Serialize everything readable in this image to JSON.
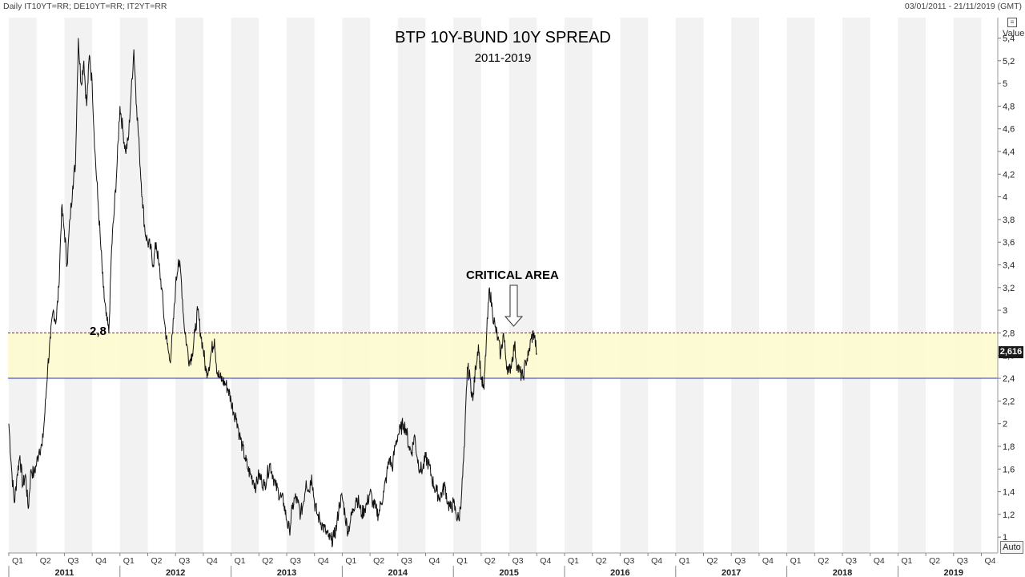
{
  "header": {
    "instruments": "Daily IT10YT=RR; DE10YT=RR; IT2YT=RR",
    "date_range": "03/01/2011 - 21/11/2019 (GMT)"
  },
  "value_header": "Value",
  "auto_label": "Auto",
  "annotations": {
    "critical_area": "CRITICAL AREA",
    "level_label": "2,8",
    "current_value": "2,616"
  },
  "colors": {
    "line": "#111111",
    "band_fill": "#fdfbcf",
    "upper_line": "#cc2222",
    "lower_line": "#2233cc",
    "stripe": "#f2f2f2",
    "badge": "#1a1a1a"
  },
  "chart_data": {
    "type": "line",
    "title": "BTP 10Y-BUND 10Y SPREAD",
    "subtitle": "2011-2019",
    "ylim": [
      0.86,
      5.58
    ],
    "y_ticks": [
      "1",
      "1,2",
      "1,4",
      "1,6",
      "1,8",
      "2",
      "2,2",
      "2,4",
      "2,6",
      "2,8",
      "3",
      "3,2",
      "3,4",
      "3,6",
      "3,8",
      "4",
      "4,2",
      "4,4",
      "4,6",
      "4,8",
      "5",
      "5,2",
      "5,4"
    ],
    "x_quarters": [
      "Q1",
      "Q2",
      "Q3",
      "Q4",
      "Q1",
      "Q2",
      "Q3",
      "Q4",
      "Q1",
      "Q2",
      "Q3",
      "Q4",
      "Q1",
      "Q2",
      "Q3",
      "Q4",
      "Q1",
      "Q2",
      "Q3",
      "Q4",
      "Q1",
      "Q2",
      "Q3",
      "Q4",
      "Q1",
      "Q2",
      "Q3",
      "Q4",
      "Q1",
      "Q2",
      "Q3",
      "Q4",
      "Q1",
      "Q2",
      "Q3",
      "Q4",
      "Q1",
      "Q2",
      "Q3",
      "Q4"
    ],
    "x_years": [
      "2011",
      "2012",
      "2013",
      "2014",
      "2015",
      "2016",
      "2017",
      "2018",
      "2019"
    ],
    "critical_band": {
      "low": 2.4,
      "high": 2.8
    },
    "last_value": 2.616,
    "series": [
      {
        "values": [
          [
            0.0,
            2.0
          ],
          [
            0.1,
            1.6
          ],
          [
            0.2,
            1.3
          ],
          [
            0.3,
            1.55
          ],
          [
            0.4,
            1.72
          ],
          [
            0.5,
            1.45
          ],
          [
            0.6,
            1.55
          ],
          [
            0.7,
            1.25
          ],
          [
            0.8,
            1.6
          ],
          [
            0.9,
            1.55
          ],
          [
            1.0,
            1.65
          ],
          [
            1.1,
            1.78
          ],
          [
            1.2,
            1.8
          ],
          [
            1.3,
            2.1
          ],
          [
            1.4,
            2.5
          ],
          [
            1.5,
            2.75
          ],
          [
            1.6,
            3.0
          ],
          [
            1.7,
            2.9
          ],
          [
            1.8,
            3.2
          ],
          [
            1.9,
            3.9
          ],
          [
            2.0,
            3.7
          ],
          [
            2.1,
            3.4
          ],
          [
            2.2,
            3.8
          ],
          [
            2.3,
            4.1
          ],
          [
            2.4,
            4.3
          ],
          [
            2.5,
            5.4
          ],
          [
            2.6,
            5.0
          ],
          [
            2.7,
            5.2
          ],
          [
            2.8,
            4.8
          ],
          [
            2.9,
            5.25
          ],
          [
            3.0,
            5.0
          ],
          [
            3.1,
            4.4
          ],
          [
            3.2,
            4.0
          ],
          [
            3.3,
            3.6
          ],
          [
            3.4,
            3.2
          ],
          [
            3.5,
            2.95
          ],
          [
            3.6,
            2.8
          ],
          [
            3.7,
            3.55
          ],
          [
            3.8,
            3.9
          ],
          [
            3.9,
            4.3
          ],
          [
            4.0,
            4.8
          ],
          [
            4.1,
            4.6
          ],
          [
            4.2,
            4.4
          ],
          [
            4.3,
            4.5
          ],
          [
            4.4,
            4.9
          ],
          [
            4.5,
            5.3
          ],
          [
            4.6,
            4.8
          ],
          [
            4.7,
            4.4
          ],
          [
            4.8,
            4.0
          ],
          [
            4.9,
            3.7
          ],
          [
            5.0,
            3.6
          ],
          [
            5.1,
            3.55
          ],
          [
            5.2,
            3.4
          ],
          [
            5.3,
            3.6
          ],
          [
            5.4,
            3.4
          ],
          [
            5.5,
            3.2
          ],
          [
            5.6,
            2.9
          ],
          [
            5.7,
            2.7
          ],
          [
            5.8,
            2.55
          ],
          [
            5.9,
            2.8
          ],
          [
            6.0,
            3.2
          ],
          [
            6.1,
            3.45
          ],
          [
            6.2,
            3.3
          ],
          [
            6.3,
            2.9
          ],
          [
            6.4,
            2.7
          ],
          [
            6.5,
            2.55
          ],
          [
            6.6,
            2.62
          ],
          [
            6.7,
            2.8
          ],
          [
            6.8,
            3.0
          ],
          [
            6.9,
            2.8
          ],
          [
            7.0,
            2.65
          ],
          [
            7.1,
            2.45
          ],
          [
            7.2,
            2.5
          ],
          [
            7.3,
            2.65
          ],
          [
            7.4,
            2.75
          ],
          [
            7.5,
            2.45
          ],
          [
            7.6,
            2.4
          ],
          [
            7.7,
            2.38
          ],
          [
            7.8,
            2.35
          ],
          [
            7.9,
            2.3
          ],
          [
            8.0,
            2.2
          ],
          [
            8.1,
            2.1
          ],
          [
            8.2,
            2.05
          ],
          [
            8.3,
            1.9
          ],
          [
            8.4,
            1.8
          ],
          [
            8.5,
            1.7
          ],
          [
            8.6,
            1.6
          ],
          [
            8.7,
            1.55
          ],
          [
            8.8,
            1.5
          ],
          [
            8.9,
            1.45
          ],
          [
            9.0,
            1.55
          ],
          [
            9.1,
            1.5
          ],
          [
            9.2,
            1.45
          ],
          [
            9.3,
            1.55
          ],
          [
            9.4,
            1.65
          ],
          [
            9.5,
            1.55
          ],
          [
            9.6,
            1.45
          ],
          [
            9.7,
            1.4
          ],
          [
            9.8,
            1.35
          ],
          [
            9.9,
            1.3
          ],
          [
            10.0,
            1.15
          ],
          [
            10.1,
            1.05
          ],
          [
            10.2,
            1.25
          ],
          [
            10.3,
            1.35
          ],
          [
            10.4,
            1.3
          ],
          [
            10.5,
            1.2
          ],
          [
            10.6,
            1.3
          ],
          [
            10.7,
            1.5
          ],
          [
            10.8,
            1.4
          ],
          [
            10.9,
            1.55
          ],
          [
            11.0,
            1.3
          ],
          [
            11.1,
            1.2
          ],
          [
            11.2,
            1.15
          ],
          [
            11.3,
            1.1
          ],
          [
            11.4,
            1.05
          ],
          [
            11.5,
            1.0
          ],
          [
            11.6,
            0.97
          ],
          [
            11.7,
            1.0
          ],
          [
            11.8,
            1.1
          ],
          [
            11.9,
            1.3
          ],
          [
            12.0,
            1.35
          ],
          [
            12.1,
            1.2
          ],
          [
            12.2,
            1.05
          ],
          [
            12.3,
            1.15
          ],
          [
            12.4,
            1.25
          ],
          [
            12.5,
            1.35
          ],
          [
            12.6,
            1.3
          ],
          [
            12.7,
            1.2
          ],
          [
            12.8,
            1.25
          ],
          [
            12.9,
            1.3
          ],
          [
            13.0,
            1.4
          ],
          [
            13.1,
            1.3
          ],
          [
            13.2,
            1.25
          ],
          [
            13.3,
            1.2
          ],
          [
            13.4,
            1.3
          ],
          [
            13.5,
            1.4
          ],
          [
            13.6,
            1.55
          ],
          [
            13.7,
            1.7
          ],
          [
            13.8,
            1.6
          ],
          [
            13.9,
            1.8
          ],
          [
            14.0,
            1.9
          ],
          [
            14.1,
            1.95
          ],
          [
            14.2,
            2.0
          ],
          [
            14.3,
            1.95
          ],
          [
            14.4,
            1.8
          ],
          [
            14.5,
            1.75
          ],
          [
            14.6,
            1.9
          ],
          [
            14.7,
            1.7
          ],
          [
            14.8,
            1.6
          ],
          [
            14.9,
            1.6
          ],
          [
            15.0,
            1.7
          ],
          [
            15.1,
            1.65
          ],
          [
            15.2,
            1.55
          ],
          [
            15.3,
            1.45
          ],
          [
            15.4,
            1.4
          ],
          [
            15.5,
            1.35
          ],
          [
            15.6,
            1.4
          ],
          [
            15.7,
            1.45
          ],
          [
            15.8,
            1.3
          ],
          [
            15.9,
            1.25
          ],
          [
            16.0,
            1.3
          ],
          [
            16.1,
            1.2
          ],
          [
            16.2,
            1.15
          ],
          [
            16.3,
            1.4
          ],
          [
            16.4,
            1.8
          ],
          [
            16.5,
            2.5
          ],
          [
            16.6,
            2.4
          ],
          [
            16.7,
            2.2
          ],
          [
            16.8,
            2.5
          ],
          [
            16.9,
            2.7
          ],
          [
            17.0,
            2.4
          ],
          [
            17.1,
            2.3
          ],
          [
            17.2,
            2.8
          ],
          [
            17.3,
            3.2
          ],
          [
            17.4,
            3.0
          ],
          [
            17.5,
            2.85
          ],
          [
            17.6,
            2.75
          ],
          [
            17.7,
            2.6
          ],
          [
            17.8,
            2.8
          ],
          [
            17.9,
            2.55
          ],
          [
            18.0,
            2.45
          ],
          [
            18.1,
            2.55
          ],
          [
            18.2,
            2.7
          ],
          [
            18.3,
            2.5
          ],
          [
            18.4,
            2.45
          ],
          [
            18.5,
            2.4
          ],
          [
            18.6,
            2.55
          ],
          [
            18.7,
            2.6
          ],
          [
            18.8,
            2.75
          ],
          [
            18.9,
            2.8
          ],
          [
            19.0,
            2.62
          ]
        ]
      }
    ]
  }
}
